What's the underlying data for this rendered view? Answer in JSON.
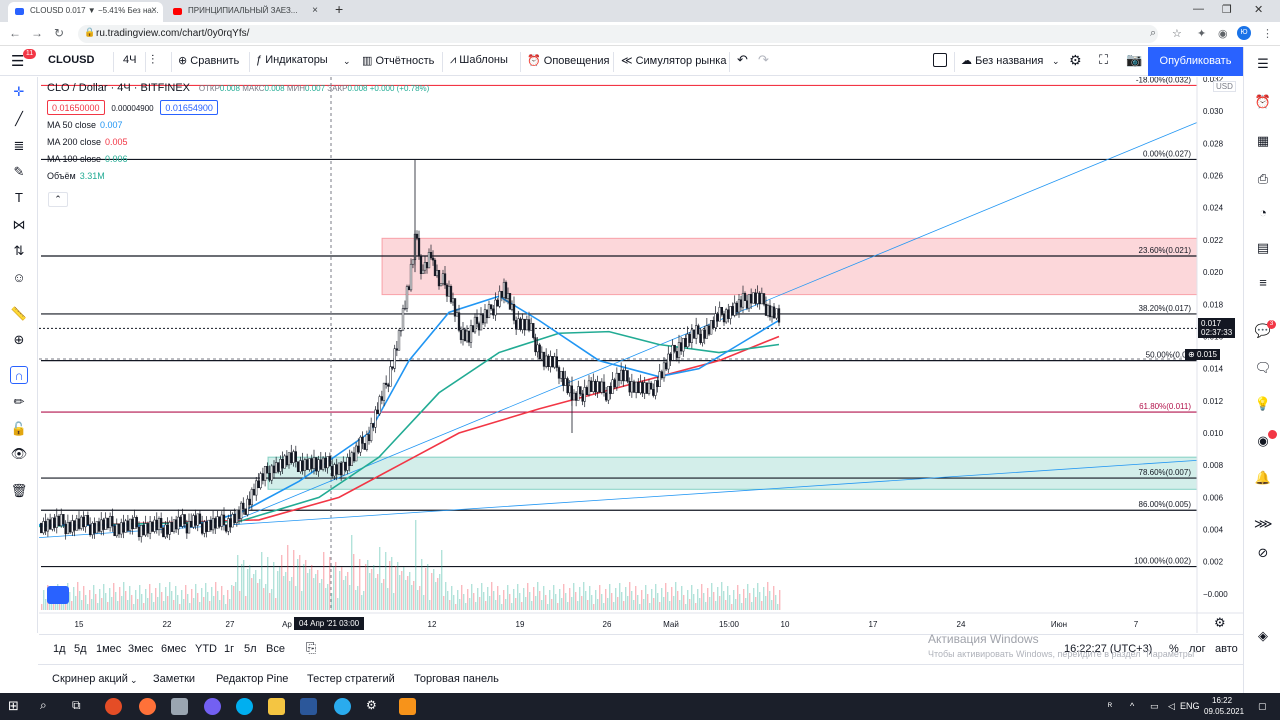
{
  "browser": {
    "tabs": [
      {
        "title": "CLOUSD 0.017 ▼ −5.41% Без на...",
        "close": "×"
      },
      {
        "title": "ПРИНЦИПИАЛЬНЫЙ ЗАЕЗ...",
        "close": "×"
      }
    ],
    "new_tab": "+",
    "url": "ru.tradingview.com/chart/0y0rqYfs/",
    "profile_letter": "Ю",
    "window_controls": [
      "—",
      "❐",
      "✕"
    ]
  },
  "toolbar": {
    "menu_badge": "11",
    "symbol": "CLOUSD",
    "interval": "4Ч",
    "compare": "Сравнить",
    "indicators": "Индикаторы",
    "financials": "Отчётность",
    "templates": "Шаблоны",
    "alerts": "Оповещения",
    "replay": "Симулятор рынка",
    "layout_name": "Без названия",
    "publish": "Опубликовать"
  },
  "legend": {
    "symbol": "CLO / Dollar · 4Ч · BITFINEX",
    "ohlc_label_open": "ОТКР",
    "open": "0.008",
    "ohlc_label_high": "МАКС",
    "high": "0.008",
    "ohlc_label_low": "МИН",
    "low": "0.007",
    "ohlc_label_close": "ЗАКР",
    "close": "0.008",
    "change": "+0.000 (+0.78%)",
    "bid": "0.01650000",
    "spread": "0.00004900",
    "ask": "0.01654900",
    "indicators": [
      {
        "name": "MA 50 close",
        "value": "0.007",
        "color": "#2196f3"
      },
      {
        "name": "MA 200 close",
        "value": "0.005",
        "color": "#f23645"
      },
      {
        "name": "MA 100 close",
        "value": "0.006",
        "color": "#22ab94"
      },
      {
        "name": "Объём",
        "value": "3.31M",
        "color": "#22ab94"
      }
    ],
    "collapse": "⌃"
  },
  "chart_data": {
    "type": "candlestick",
    "currency": "USD",
    "y_ticks": [
      "0.032",
      "0.030",
      "0.028",
      "0.026",
      "0.024",
      "0.022",
      "0.020",
      "0.018",
      "0.016",
      "0.014",
      "0.012",
      "0.010",
      "0.008",
      "0.006",
      "0.004",
      "0.002",
      "−0.000"
    ],
    "ylim": [
      -0.001,
      0.032
    ],
    "x_ticks": [
      "15",
      "22",
      "27",
      "Ap",
      "12",
      "19",
      "26",
      "Май",
      "15:00",
      "10",
      "17",
      "24",
      "Июн",
      "7"
    ],
    "crosshair_label": "04 Апр '21   03:00",
    "fib_levels": [
      {
        "label": "-18.00%(0.032)",
        "price": 0.0316
      },
      {
        "label": "0.00%(0.027)",
        "price": 0.027
      },
      {
        "label": "23.60%(0.021)",
        "price": 0.021
      },
      {
        "label": "38.20%(0.017)",
        "price": 0.0174
      },
      {
        "label": "50.00%(0.01",
        "price": 0.0145
      },
      {
        "label": "61.80%(0.011)",
        "price": 0.0113
      },
      {
        "label": "78.60%(0.007)",
        "price": 0.0072
      },
      {
        "label": "86.00%(0.005)",
        "price": 0.0052
      },
      {
        "label": "100.00%(0.002)",
        "price": 0.0017
      }
    ],
    "current_price": "0.017",
    "countdown": "02:37:33",
    "crosshair_price": "0.015",
    "resistance_zone": [
      0.0186,
      0.0221
    ],
    "support_zone": [
      0.0065,
      0.0085
    ],
    "price_path": [
      [
        0,
        0.0044
      ],
      [
        40,
        0.0043
      ],
      [
        80,
        0.0042
      ],
      [
        120,
        0.0041
      ],
      [
        150,
        0.0044
      ],
      [
        185,
        0.0043
      ],
      [
        200,
        0.0048
      ],
      [
        215,
        0.0065
      ],
      [
        235,
        0.008
      ],
      [
        250,
        0.0083
      ],
      [
        275,
        0.008
      ],
      [
        300,
        0.0079
      ],
      [
        315,
        0.0085
      ],
      [
        330,
        0.01
      ],
      [
        345,
        0.0125
      ],
      [
        360,
        0.016
      ],
      [
        368,
        0.0185
      ],
      [
        376,
        0.022
      ],
      [
        384,
        0.02
      ],
      [
        392,
        0.021
      ],
      [
        400,
        0.0195
      ],
      [
        410,
        0.019
      ],
      [
        420,
        0.0165
      ],
      [
        430,
        0.016
      ],
      [
        440,
        0.017
      ],
      [
        450,
        0.0175
      ],
      [
        465,
        0.019
      ],
      [
        475,
        0.017
      ],
      [
        490,
        0.0165
      ],
      [
        505,
        0.0145
      ],
      [
        520,
        0.014
      ],
      [
        535,
        0.012
      ],
      [
        550,
        0.013
      ],
      [
        565,
        0.0125
      ],
      [
        580,
        0.0135
      ],
      [
        595,
        0.013
      ],
      [
        610,
        0.0125
      ],
      [
        625,
        0.014
      ],
      [
        640,
        0.0155
      ],
      [
        655,
        0.016
      ],
      [
        670,
        0.0165
      ],
      [
        685,
        0.0175
      ],
      [
        700,
        0.0178
      ],
      [
        710,
        0.0185
      ],
      [
        725,
        0.018
      ],
      [
        735,
        0.0175
      ],
      [
        740,
        0.017
      ]
    ],
    "ma50": [
      [
        0,
        0.0043
      ],
      [
        150,
        0.0042
      ],
      [
        200,
        0.005
      ],
      [
        260,
        0.007
      ],
      [
        330,
        0.01
      ],
      [
        370,
        0.0145
      ],
      [
        410,
        0.0175
      ],
      [
        460,
        0.0185
      ],
      [
        500,
        0.017
      ],
      [
        560,
        0.0145
      ],
      [
        620,
        0.0135
      ],
      [
        660,
        0.014
      ],
      [
        700,
        0.0155
      ],
      [
        740,
        0.017
      ]
    ],
    "ma100": [
      [
        0,
        0.0042
      ],
      [
        200,
        0.0045
      ],
      [
        280,
        0.006
      ],
      [
        340,
        0.0085
      ],
      [
        400,
        0.0125
      ],
      [
        460,
        0.015
      ],
      [
        520,
        0.0162
      ],
      [
        570,
        0.0163
      ],
      [
        620,
        0.0155
      ],
      [
        680,
        0.015
      ],
      [
        740,
        0.0155
      ]
    ],
    "ma200": [
      [
        0,
        0.0042
      ],
      [
        220,
        0.0046
      ],
      [
        300,
        0.006
      ],
      [
        360,
        0.008
      ],
      [
        420,
        0.01
      ],
      [
        500,
        0.0115
      ],
      [
        560,
        0.0125
      ],
      [
        620,
        0.0135
      ],
      [
        680,
        0.0145
      ],
      [
        740,
        0.016
      ]
    ],
    "ylabel": "USD"
  },
  "ranges": [
    "1д",
    "5д",
    "1мес",
    "3мес",
    "6мес",
    "YTD",
    "1г",
    "5л",
    "Все"
  ],
  "status": {
    "time": "16:22:27 (UTC+3)",
    "percent": "%",
    "log": "лог",
    "auto": "авто"
  },
  "watermark": {
    "title": "Активация Windows",
    "subtitle": "Чтобы активировать Windows, перейдите в раздел \"Параметры\""
  },
  "bottom_tabs": [
    "Скринер акций",
    "Заметки",
    "Редактор Pine",
    "Тестер стратегий",
    "Торговая панель"
  ],
  "taskbar": {
    "lang": "ENG",
    "time": "16:22",
    "date": "09.05.2021"
  },
  "colors": {
    "accent": "#2962ff",
    "red": "#f23645",
    "teal": "#22ab94",
    "blue": "#2196f3"
  }
}
